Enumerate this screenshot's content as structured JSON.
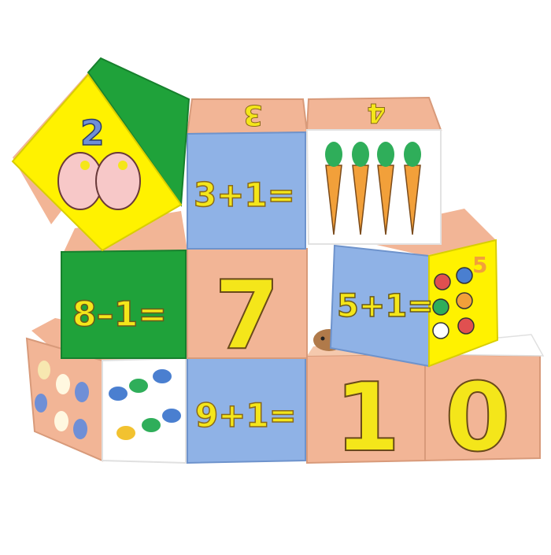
{
  "palette": {
    "yellow": "#fff200",
    "yellow_text": "#f4e61a",
    "green": "#1fa23a",
    "blue": "#8fb2e6",
    "peach": "#f2b596",
    "pink_text": "#f3a6c8",
    "white": "#ffffff",
    "orange": "#f2a03a",
    "outline": "#3a2a1a"
  },
  "blocks": {
    "tilted_top": {
      "digit": "2",
      "icon": "shoes-icon"
    },
    "top_middle": {
      "top_digit": "3",
      "equation": "3+1="
    },
    "top_right": {
      "top_digit": "4",
      "icon": "carrots-icon"
    },
    "mid_left": {
      "equation": "8–1="
    },
    "mid_center": {
      "digit": "7"
    },
    "mid_right": {
      "equation": "5+1=",
      "side_digit": "5",
      "icon": "balls-icon"
    },
    "bottom_left": {
      "icon_left": "dots-icon",
      "icon_right": "fish-icon"
    },
    "bottom_center": {
      "equation": "9+1="
    },
    "bottom_right_a": {
      "digit": "1"
    },
    "bottom_right_b": {
      "digit": "0"
    }
  }
}
